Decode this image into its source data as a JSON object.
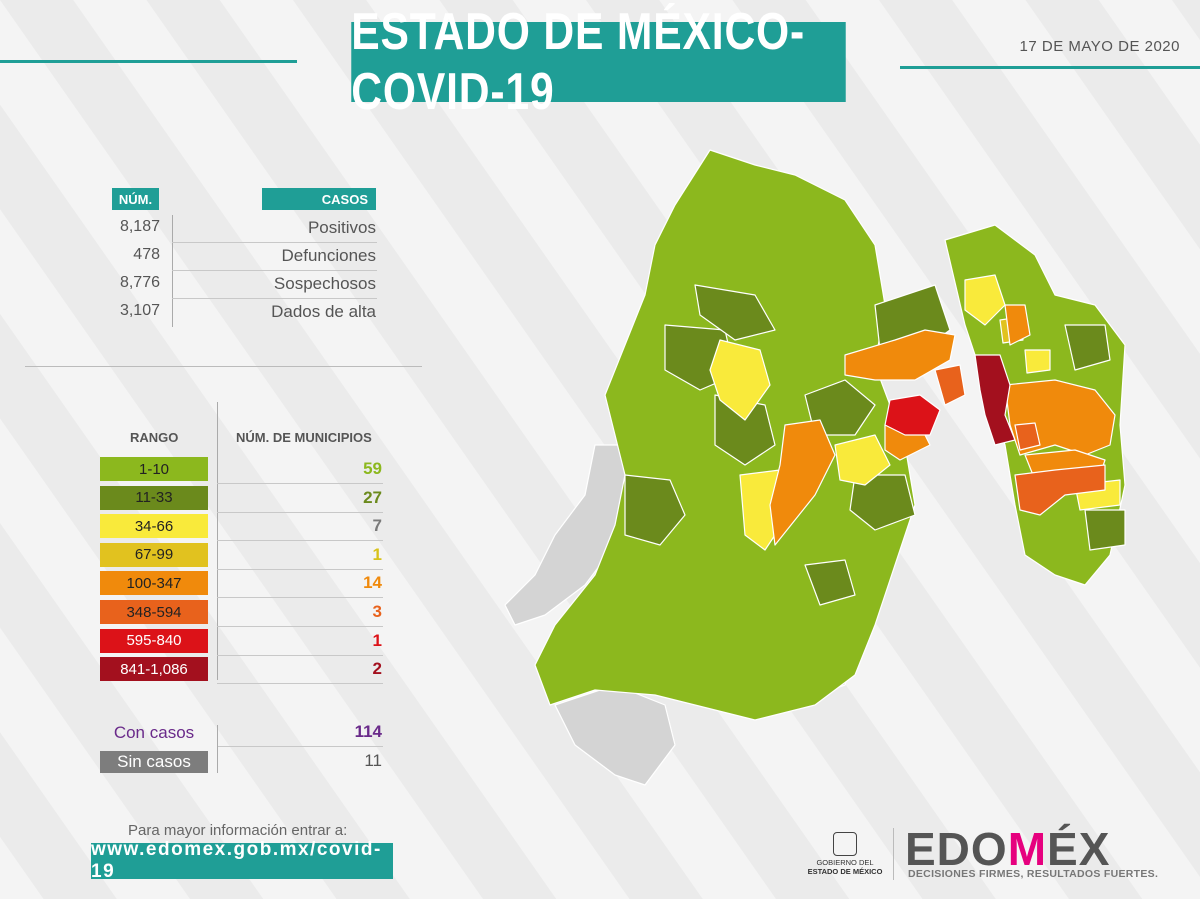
{
  "header": {
    "title": "ESTADO DE MÉXICO-COVID-19",
    "date": "17 DE MAYO DE 2020"
  },
  "cases_table": {
    "col_num": "NÚM.",
    "col_cases": "CASOS",
    "rows": [
      {
        "value": "8,187",
        "label": "Positivos"
      },
      {
        "value": "478",
        "label": "Defunciones"
      },
      {
        "value": "8,776",
        "label": "Sospechosos"
      },
      {
        "value": "3,107",
        "label": "Dados de alta"
      }
    ]
  },
  "legend": {
    "col_range": "RANGO",
    "col_municipios": "NÚM. DE MUNICIPIOS",
    "rows": [
      {
        "range": "1-10",
        "count": "59",
        "color": "#8cb81e",
        "text_color": "#8cb81e"
      },
      {
        "range": "11-33",
        "count": "27",
        "color": "#6b8a1c",
        "text_color": "#6b8a1c"
      },
      {
        "range": "34-66",
        "count": "7",
        "color": "#f9ea3b",
        "text_color": "#7a7a7a"
      },
      {
        "range": "67-99",
        "count": "1",
        "color": "#e1c21f",
        "text_color": "#d8c21a"
      },
      {
        "range": "100-347",
        "count": "14",
        "color": "#f08a0c",
        "text_color": "#f08a0c"
      },
      {
        "range": "348-594",
        "count": "3",
        "color": "#e8621c",
        "text_color": "#e8621c"
      },
      {
        "range": "595-840",
        "count": "1",
        "color": "#dc1218",
        "text_color": "#dc1218"
      },
      {
        "range": "841-1,086",
        "count": "2",
        "color": "#a3101e",
        "text_color": "#a3101e"
      }
    ],
    "con_casos": {
      "label": "Con casos",
      "count": "114",
      "color": "#6a2a8a"
    },
    "sin_casos": {
      "label": "Sin casos",
      "count": "11",
      "color": "#7d7d7d"
    }
  },
  "footer": {
    "info": "Para mayor información entrar a:",
    "url": "www.edomex.gob.mx/covid-19",
    "gov_line1": "GOBIERNO DEL",
    "gov_line2": "ESTADO DE MÉXICO",
    "logo_pre": "EDO",
    "logo_a": "M",
    "logo_post": "ÉX",
    "slogan": "DECISIONES FIRMES, RESULTADOS FUERTES."
  }
}
